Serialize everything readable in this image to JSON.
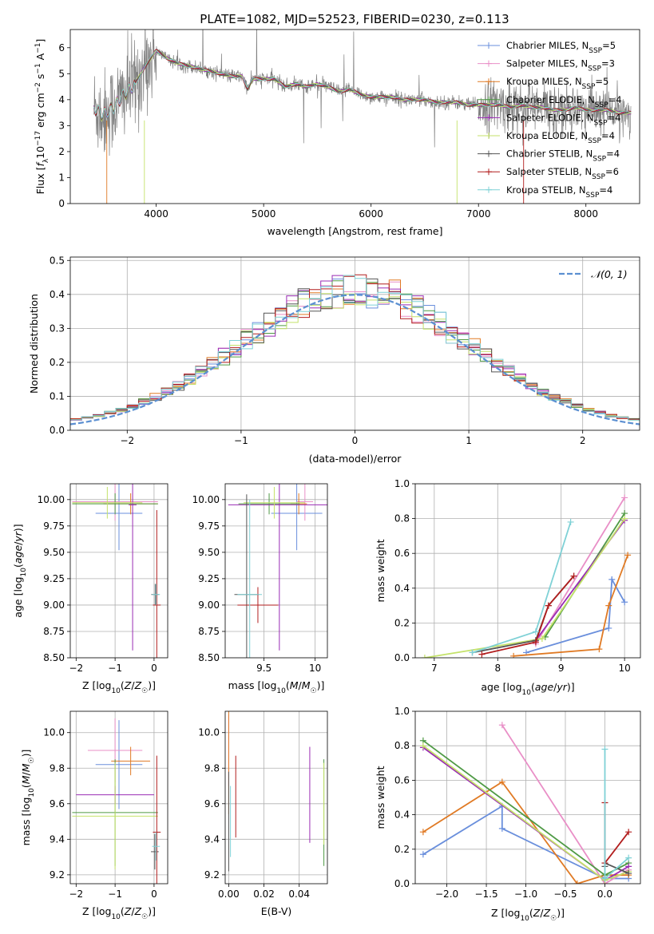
{
  "figure": {
    "title": "PLATE=1082, MJD=52523, FIBERID=0230, z=0.113"
  },
  "colors": {
    "Chabrier MILES": "#6a8fdc",
    "Salpeter MILES": "#e98fc7",
    "Kroupa MILES": "#e07a24",
    "Chabrier ELODIE": "#4f9a45",
    "Salpeter ELODIE": "#9a2bb4",
    "Kroupa ELODIE": "#c4e26a",
    "Chabrier STELIB": "#555555",
    "Salpeter STELIB": "#b21e1e",
    "Kroupa STELIB": "#7fd1d6",
    "data": "#808080",
    "normal": "#5b8fd1"
  },
  "chart_data": [
    {
      "id": "spectrum",
      "type": "line",
      "xlabel": "wavelength [Angstrom, rest frame]",
      "ylabel": "Flux [f_λ 10^-17 erg cm^-2 s^-1 A^-1]",
      "xlim": [
        3200,
        8500
      ],
      "ylim": [
        0,
        6.7
      ],
      "xticks": [
        4000,
        5000,
        6000,
        7000,
        8000
      ],
      "yticks": [
        0,
        1,
        2,
        3,
        4,
        5,
        6
      ],
      "grid": false,
      "legend_position": "top-right",
      "legend": [
        {
          "model": "Chabrier MILES",
          "label": "Chabrier MILES, N_SSP=5"
        },
        {
          "model": "Salpeter MILES",
          "label": "Salpeter MILES, N_SSP=3"
        },
        {
          "model": "Kroupa MILES",
          "label": "Kroupa MILES, N_SSP=5"
        },
        {
          "model": "Chabrier ELODIE",
          "label": "Chabrier ELODIE, N_SSP=4"
        },
        {
          "model": "Salpeter ELODIE",
          "label": "Salpeter ELODIE, N_SSP=4"
        },
        {
          "model": "Kroupa ELODIE",
          "label": "Kroupa ELODIE, N_SSP=4"
        },
        {
          "model": "Chabrier STELIB",
          "label": "Chabrier STELIB, N_SSP=4"
        },
        {
          "model": "Salpeter STELIB",
          "label": "Salpeter STELIB, N_SSP=6"
        },
        {
          "model": "Kroupa STELIB",
          "label": "Kroupa STELIB, N_SSP=4"
        }
      ],
      "model_continuum": {
        "x": [
          3420,
          3500,
          3600,
          3700,
          3800,
          3900,
          3950,
          4000,
          4100,
          4200,
          4300,
          4400,
          4500,
          4600,
          4700,
          4800,
          4850,
          4900,
          5000,
          5100,
          5200,
          5300,
          5400,
          5500,
          5600,
          5700,
          5800,
          5900,
          6000,
          6100,
          6200,
          6300,
          6400,
          6500,
          6600,
          6700,
          6800,
          6900,
          7000,
          7100,
          7200,
          7300,
          7400,
          7500,
          7600,
          7700,
          7800,
          7900,
          8000,
          8100,
          8200,
          8300,
          8400
        ],
        "y": [
          3.7,
          3.4,
          3.7,
          4.2,
          4.6,
          5.3,
          5.6,
          5.9,
          5.6,
          5.4,
          5.3,
          5.2,
          5.1,
          5.0,
          4.9,
          4.9,
          4.4,
          4.8,
          4.8,
          4.8,
          4.5,
          4.6,
          4.5,
          4.6,
          4.5,
          4.3,
          4.4,
          4.2,
          4.1,
          4.1,
          4.1,
          4.0,
          4.0,
          4.0,
          3.9,
          3.9,
          3.9,
          3.8,
          3.8,
          3.8,
          3.8,
          3.7,
          3.8,
          3.7,
          3.7,
          3.6,
          3.6,
          3.7,
          3.6,
          3.6,
          3.6,
          3.5,
          3.5
        ]
      }
    },
    {
      "id": "residuals",
      "type": "bar",
      "xlabel": "(data-model)/error",
      "ylabel": "Normed distribution",
      "xlim": [
        -2.5,
        2.5
      ],
      "ylim": [
        0,
        0.51
      ],
      "xticks": [
        -2,
        -1,
        0,
        1,
        2
      ],
      "yticks": [
        0.0,
        0.1,
        0.2,
        0.3,
        0.4,
        0.5
      ],
      "grid": true,
      "legend_position": "top-right",
      "reference_curve": "N(0,1)",
      "reference_label": "𝒩(0, 1)",
      "bin_edges_start": -2.5,
      "bin_width": 0.1
    },
    {
      "id": "age-vs-Z",
      "type": "scatter",
      "xlabel": "Z [log10(Z/Z☉)]",
      "ylabel": "age [log10(age/yr)]",
      "xlim": [
        -2.15,
        0.35
      ],
      "ylim": [
        8.5,
        10.15
      ],
      "xticks": [
        -2,
        -1,
        0
      ],
      "yticks": [
        8.5,
        8.75,
        9.0,
        9.25,
        9.5,
        9.75,
        10.0
      ],
      "grid": true,
      "points": [
        {
          "model": "Chabrier MILES",
          "x": -0.9,
          "xerr": 0.6,
          "y": 9.87,
          "yerr": 0.35
        },
        {
          "model": "Salpeter MILES",
          "x": -1.0,
          "xerr": 1.1,
          "y": 9.98,
          "yerr": 0.18
        },
        {
          "model": "Kroupa MILES",
          "x": -0.6,
          "xerr": 0.7,
          "y": 9.96,
          "yerr": 0.1
        },
        {
          "model": "Chabrier ELODIE",
          "x": -1.0,
          "xerr": 1.1,
          "y": 9.96,
          "yerr": 0.1
        },
        {
          "model": "Salpeter ELODIE",
          "x": -0.55,
          "xerr": 0.1,
          "y": 9.95,
          "yerr": 1.38
        },
        {
          "model": "Kroupa ELODIE",
          "x": -1.2,
          "xerr": 0.9,
          "y": 9.97,
          "yerr": 0.15
        },
        {
          "model": "Chabrier STELIB",
          "x": 0.03,
          "xerr": 0.1,
          "y": 9.1,
          "yerr": 0.1
        },
        {
          "model": "Salpeter STELIB",
          "x": 0.07,
          "xerr": 0.1,
          "y": 9.0,
          "yerr": 0.9
        },
        {
          "model": "Kroupa STELIB",
          "x": 0.05,
          "xerr": 0.1,
          "y": 9.1,
          "yerr": 0.1
        }
      ]
    },
    {
      "id": "age-vs-mass",
      "type": "scatter",
      "xlabel": "mass [log10(M/M☉)]",
      "ylabel": "",
      "xlim": [
        9.12,
        10.12
      ],
      "ylim": [
        8.5,
        10.15
      ],
      "xticks": [
        9.5,
        10.0
      ],
      "yticks": [
        8.5,
        8.75,
        9.0,
        9.25,
        9.5,
        9.75,
        10.0
      ],
      "grid": true,
      "points": [
        {
          "model": "Chabrier MILES",
          "x": 9.82,
          "xerr": 0.25,
          "y": 9.87,
          "yerr": 0.35
        },
        {
          "model": "Salpeter MILES",
          "x": 9.9,
          "xerr": 0.08,
          "y": 9.98,
          "yerr": 0.18
        },
        {
          "model": "Kroupa MILES",
          "x": 9.84,
          "xerr": 0.08,
          "y": 9.96,
          "yerr": 0.1
        },
        {
          "model": "Chabrier ELODIE",
          "x": 9.55,
          "xerr": 0.3,
          "y": 9.96,
          "yerr": 0.1
        },
        {
          "model": "Salpeter ELODIE",
          "x": 9.65,
          "xerr": 0.5,
          "y": 9.95,
          "yerr": 1.38
        },
        {
          "model": "Kroupa ELODIE",
          "x": 9.6,
          "xerr": 0.3,
          "y": 9.97,
          "yerr": 0.15
        },
        {
          "model": "Chabrier STELIB",
          "x": 9.33,
          "xerr": 0.12,
          "y": 9.1,
          "yerr": 0.95
        },
        {
          "model": "Salpeter STELIB",
          "x": 9.44,
          "xerr": 0.2,
          "y": 9.0,
          "yerr": 0.17
        },
        {
          "model": "Kroupa STELIB",
          "x": 9.36,
          "xerr": 0.12,
          "y": 9.1,
          "yerr": 0.9
        }
      ]
    },
    {
      "id": "weight-vs-age",
      "type": "line",
      "xlabel": "age [log10(age/yr)]",
      "ylabel": "mass weight",
      "xlim": [
        6.7,
        10.25
      ],
      "ylim": [
        0,
        1.0
      ],
      "xticks": [
        7,
        8,
        9,
        10
      ],
      "yticks": [
        0.0,
        0.2,
        0.4,
        0.6,
        0.8,
        1.0
      ],
      "grid": true,
      "series": [
        {
          "model": "Chabrier MILES",
          "x": [
            8.45,
            9.75,
            9.8,
            10.0
          ],
          "y": [
            0.03,
            0.17,
            0.45,
            0.32
          ]
        },
        {
          "model": "Salpeter MILES",
          "x": [
            8.6,
            10.0
          ],
          "y": [
            0.08,
            0.92
          ]
        },
        {
          "model": "Kroupa MILES",
          "x": [
            8.25,
            9.6,
            9.75,
            10.05
          ],
          "y": [
            0.01,
            0.05,
            0.3,
            0.59
          ]
        },
        {
          "model": "Chabrier ELODIE",
          "x": [
            8.75,
            10.0
          ],
          "y": [
            0.12,
            0.83
          ]
        },
        {
          "model": "Salpeter ELODIE",
          "x": [
            8.6,
            10.0
          ],
          "y": [
            0.1,
            0.79
          ]
        },
        {
          "model": "Kroupa ELODIE",
          "x": [
            6.85,
            8.7,
            10.0
          ],
          "y": [
            0.0,
            0.11,
            0.8
          ]
        },
        {
          "model": "Chabrier STELIB",
          "x": [
            7.6,
            8.6,
            8.8,
            9.2
          ],
          "y": [
            0.03,
            0.1,
            0.3,
            0.47
          ]
        },
        {
          "model": "Salpeter STELIB",
          "x": [
            7.75,
            8.6,
            8.8,
            9.2
          ],
          "y": [
            0.02,
            0.09,
            0.3,
            0.47
          ]
        },
        {
          "model": "Kroupa STELIB",
          "x": [
            7.6,
            8.6,
            9.15
          ],
          "y": [
            0.03,
            0.15,
            0.78
          ]
        }
      ]
    },
    {
      "id": "mass-vs-Z",
      "type": "scatter",
      "xlabel": "Z [log10(Z/Z☉)]",
      "ylabel": "mass [log10(M/M☉)]",
      "xlim": [
        -2.15,
        0.35
      ],
      "ylim": [
        9.15,
        10.12
      ],
      "xticks": [
        -2,
        -1,
        0
      ],
      "yticks": [
        9.2,
        9.4,
        9.6,
        9.8,
        10.0
      ],
      "grid": true,
      "points": [
        {
          "model": "Chabrier MILES",
          "x": -0.9,
          "xerr": 0.6,
          "y": 9.82,
          "yerr": 0.25
        },
        {
          "model": "Salpeter MILES",
          "x": -1.0,
          "xerr": 0.7,
          "y": 9.9,
          "yerr": 0.18
        },
        {
          "model": "Kroupa MILES",
          "x": -0.6,
          "xerr": 0.5,
          "y": 9.84,
          "yerr": 0.08
        },
        {
          "model": "Chabrier ELODIE",
          "x": -1.0,
          "xerr": 1.1,
          "y": 9.55,
          "yerr": 0.3
        },
        {
          "model": "Salpeter ELODIE",
          "x": -1.0,
          "xerr": 1.0,
          "y": 9.65,
          "yerr": 0.05
        },
        {
          "model": "Kroupa ELODIE",
          "x": -1.0,
          "xerr": 1.1,
          "y": 9.53,
          "yerr": 0.3
        },
        {
          "model": "Chabrier STELIB",
          "x": 0.02,
          "xerr": 0.1,
          "y": 9.33,
          "yerr": 0.1
        },
        {
          "model": "Salpeter STELIB",
          "x": 0.07,
          "xerr": 0.1,
          "y": 9.44,
          "yerr": 0.43
        },
        {
          "model": "Kroupa STELIB",
          "x": 0.05,
          "xerr": 0.1,
          "y": 9.36,
          "yerr": 0.08
        }
      ]
    },
    {
      "id": "mass-vs-EBV",
      "type": "scatter",
      "xlabel": "E(B-V)",
      "ylabel": "",
      "xlim": [
        -0.002,
        0.056
      ],
      "ylim": [
        9.15,
        10.12
      ],
      "xticks": [
        0.0,
        0.02,
        0.04
      ],
      "xtick_labels": [
        "0.00",
        "0.02",
        "0.04"
      ],
      "yticks": [
        9.2,
        9.4,
        9.6,
        9.8,
        10.0
      ],
      "grid": true,
      "points": [
        {
          "model": "Salpeter MILES",
          "x": 0.0,
          "y": 9.9,
          "yerr": 0.2
        },
        {
          "model": "Kroupa MILES",
          "x": 0.0,
          "y": 9.84,
          "yerr": 0.3
        },
        {
          "model": "Chabrier ELODIE",
          "x": 0.054,
          "y": 9.55,
          "yerr": 0.3
        },
        {
          "model": "Salpeter ELODIE",
          "x": 0.046,
          "y": 9.65,
          "yerr": 0.27
        },
        {
          "model": "Kroupa ELODIE",
          "x": 0.054,
          "y": 9.6,
          "yerr": 0.23
        },
        {
          "model": "Chabrier STELIB",
          "x": 0.0,
          "y": 9.5,
          "yerr": 0.28
        },
        {
          "model": "Salpeter STELIB",
          "x": 0.004,
          "y": 9.64,
          "yerr": 0.23
        },
        {
          "model": "Kroupa STELIB",
          "x": 0.001,
          "y": 9.5,
          "yerr": 0.2
        }
      ]
    },
    {
      "id": "weight-vs-Z",
      "type": "line",
      "xlabel": "Z [log10(Z/Z☉)]",
      "ylabel": "mass weight",
      "xlim": [
        -2.4,
        0.45
      ],
      "ylim": [
        0,
        1.0
      ],
      "xticks": [
        -2.0,
        -1.5,
        -1.0,
        -0.5,
        0.0
      ],
      "xtick_labels": [
        "−2.0",
        "−1.5",
        "−1.0",
        "−0.5",
        "0.0"
      ],
      "yticks": [
        0.0,
        0.2,
        0.4,
        0.6,
        0.8,
        1.0
      ],
      "grid": true,
      "series": [
        {
          "model": "Chabrier MILES",
          "x": [
            -2.3,
            -1.3,
            -1.3,
            0.0,
            0.3
          ],
          "y": [
            0.17,
            0.45,
            0.32,
            0.03,
            0.03
          ]
        },
        {
          "model": "Salpeter MILES",
          "x": [
            -1.3,
            0.0,
            0.3
          ],
          "y": [
            0.92,
            0.0,
            0.08
          ]
        },
        {
          "model": "Kroupa MILES",
          "x": [
            -2.3,
            -1.3,
            -0.35,
            0.0,
            0.3
          ],
          "y": [
            0.3,
            0.59,
            0.0,
            0.05,
            0.05
          ]
        },
        {
          "model": "Chabrier ELODIE",
          "x": [
            -2.3,
            0.0,
            0.3
          ],
          "y": [
            0.83,
            0.05,
            0.12
          ]
        },
        {
          "model": "Salpeter ELODIE",
          "x": [
            -2.3,
            0.0,
            0.3
          ],
          "y": [
            0.79,
            0.02,
            0.1
          ]
        },
        {
          "model": "Kroupa ELODIE",
          "x": [
            -2.3,
            0.0,
            0.3
          ],
          "y": [
            0.8,
            0.02,
            0.07
          ]
        },
        {
          "model": "Chabrier STELIB",
          "x": [
            0.0,
            0.0,
            0.3
          ],
          "y": [
            0.1,
            0.12,
            0.06
          ]
        },
        {
          "model": "Salpeter STELIB",
          "x": [
            0.0,
            0.0,
            0.3
          ],
          "y": [
            0.47,
            0.12,
            0.3
          ]
        },
        {
          "model": "Kroupa STELIB",
          "x": [
            0.0,
            0.0,
            0.3
          ],
          "y": [
            0.78,
            0.03,
            0.15
          ]
        }
      ]
    }
  ]
}
